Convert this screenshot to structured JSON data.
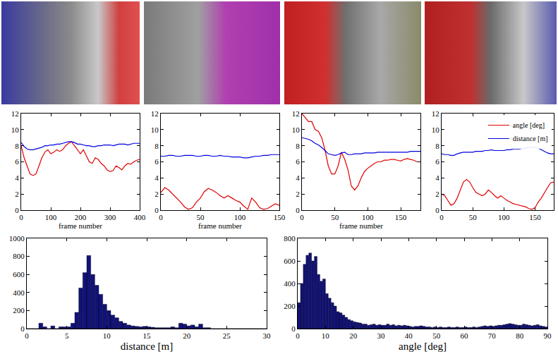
{
  "chart_data": [
    {
      "type": "line",
      "xlabel": "frame number",
      "x": [
        0,
        10,
        20,
        30,
        40,
        50,
        60,
        70,
        80,
        90,
        100,
        110,
        120,
        130,
        140,
        150,
        160,
        170,
        180,
        190,
        200,
        210,
        220,
        230,
        240,
        250,
        260,
        270,
        280,
        290,
        300,
        310,
        320,
        330,
        340,
        350,
        360,
        370,
        380,
        390,
        400
      ],
      "series": [
        {
          "color": "#e00000",
          "values": [
            8,
            6.5,
            5.5,
            4.5,
            4.3,
            4.5,
            5.5,
            6.5,
            7.2,
            7.5,
            7,
            7.2,
            7.5,
            7.3,
            7.5,
            8,
            8.3,
            8.5,
            8,
            7.5,
            7,
            7.5,
            6.8,
            6,
            5.8,
            6.5,
            6.3,
            5.8,
            5.5,
            5,
            4.8,
            4.9,
            5.5,
            5.3,
            5,
            5.5,
            5.8,
            5.7,
            6,
            6.2,
            6.3
          ]
        },
        {
          "color": "#0000e0",
          "values": [
            8.4,
            7.9,
            7.6,
            7.5,
            7.5,
            7.6,
            7.7,
            7.8,
            8.0,
            8.0,
            8.1,
            8.1,
            8.2,
            8.2,
            8.3,
            8.4,
            8.5,
            8.5,
            8.4,
            8.2,
            8.2,
            8.1,
            8.0,
            8.0,
            7.9,
            7.9,
            8.0,
            8.0,
            8.1,
            8.1,
            8.1,
            8.0,
            8.1,
            8.2,
            8.2,
            8.2,
            8.1,
            8.2,
            8.3,
            8.3,
            8.3
          ]
        }
      ],
      "xlim": [
        0,
        400
      ],
      "xticks": [
        0,
        100,
        200,
        300,
        400
      ],
      "ylim": [
        0,
        12
      ],
      "yticks": [
        0,
        2,
        4,
        6,
        8,
        10,
        12
      ],
      "grid": false
    },
    {
      "type": "line",
      "xlabel": "frame number",
      "x": [
        0,
        5,
        10,
        15,
        20,
        25,
        30,
        35,
        40,
        45,
        50,
        55,
        60,
        65,
        70,
        75,
        80,
        85,
        90,
        95,
        100,
        105,
        110,
        115,
        120,
        125,
        130,
        135,
        140,
        145,
        150
      ],
      "series": [
        {
          "color": "#e00000",
          "values": [
            2.2,
            2.8,
            2.5,
            2,
            1.5,
            1,
            0.4,
            0.1,
            0.3,
            1,
            1.5,
            2.3,
            2.7,
            2.5,
            2.2,
            1.8,
            1.5,
            1.8,
            1.5,
            1.2,
            1,
            0.5,
            0.1,
            1.5,
            1,
            0.3,
            0.1,
            0.2,
            0.5,
            0.8,
            0.6
          ]
        },
        {
          "color": "#0000e0",
          "values": [
            6.7,
            6.7,
            6.8,
            6.8,
            6.7,
            6.7,
            6.8,
            6.8,
            6.8,
            6.7,
            6.7,
            6.8,
            6.8,
            6.7,
            6.7,
            6.8,
            6.7,
            6.7,
            6.6,
            6.6,
            6.6,
            6.5,
            6.5,
            6.6,
            6.7,
            6.7,
            6.8,
            6.8,
            6.9,
            6.9,
            6.9
          ]
        }
      ],
      "xlim": [
        0,
        150
      ],
      "xticks": [
        0,
        50,
        100,
        150
      ],
      "ylim": [
        0,
        12
      ],
      "yticks": [
        0,
        2,
        4,
        6,
        8,
        10,
        12
      ],
      "grid": false
    },
    {
      "type": "line",
      "xlabel": "frame number",
      "x": [
        0,
        5,
        10,
        15,
        20,
        25,
        30,
        35,
        40,
        45,
        50,
        55,
        60,
        65,
        70,
        75,
        80,
        85,
        90,
        95,
        100,
        105,
        110,
        115,
        120,
        125,
        130,
        135,
        140,
        145,
        150,
        155,
        160,
        165,
        170,
        175,
        180
      ],
      "series": [
        {
          "color": "#e00000",
          "values": [
            12,
            11.5,
            11,
            11,
            10,
            9.8,
            9,
            7.5,
            5.5,
            4.5,
            4.5,
            5.5,
            7.2,
            6.3,
            5,
            3,
            2.5,
            3,
            4,
            4.8,
            5.2,
            5.5,
            5.8,
            6,
            6,
            6.2,
            6.2,
            6.3,
            6.3,
            6.2,
            6.1,
            6.3,
            6.4,
            6.3,
            6.2,
            6,
            6
          ]
        },
        {
          "color": "#0000e0",
          "values": [
            9,
            8.9,
            8.8,
            8.6,
            8.3,
            8.1,
            7.8,
            7.4,
            7,
            6.9,
            6.8,
            6.9,
            7.1,
            7.2,
            6.9,
            6.9,
            7,
            7,
            7,
            7.1,
            7.1,
            7.1,
            7.1,
            7.2,
            7.2,
            7.2,
            7.2,
            7.2,
            7.2,
            7.2,
            7.2,
            7.2,
            7.2,
            7.3,
            7.3,
            7.3,
            7.3
          ]
        }
      ],
      "xlim": [
        0,
        180
      ],
      "xticks": [
        0,
        50,
        100,
        150
      ],
      "ylim": [
        0,
        12
      ],
      "yticks": [
        0,
        2,
        4,
        6,
        8,
        10,
        12
      ],
      "grid": false
    },
    {
      "type": "line",
      "x": [
        0,
        5,
        10,
        15,
        20,
        25,
        30,
        35,
        40,
        45,
        50,
        55,
        60,
        65,
        70,
        75,
        80,
        85,
        90,
        95,
        100,
        105,
        110,
        115,
        120,
        125,
        130,
        135,
        140,
        145,
        150,
        155,
        160,
        165,
        170,
        175,
        180
      ],
      "series": [
        {
          "name": "angle [deg]",
          "color": "#e00000",
          "values": [
            2,
            1.8,
            1.2,
            0.6,
            0.8,
            1.5,
            2.5,
            3.5,
            3.8,
            3.5,
            2.8,
            2.2,
            2,
            1.8,
            2,
            2.5,
            2.2,
            1.8,
            1.5,
            1.8,
            1.5,
            1.2,
            1,
            0.8,
            0.7,
            0.6,
            0.5,
            0.4,
            0.2,
            0.1,
            0.3,
            1,
            1.5,
            2.2,
            2.8,
            3.4,
            3.5
          ]
        },
        {
          "name": "distance [m]",
          "color": "#0000e0",
          "values": [
            7,
            6.9,
            6.9,
            6.8,
            6.8,
            7,
            7.1,
            7.2,
            7.2,
            7.2,
            7.2,
            7.3,
            7.3,
            7.3,
            7.4,
            7.4,
            7.5,
            7.4,
            7.4,
            7.4,
            7.4,
            7.5,
            7.5,
            7.6,
            7.6,
            7.6,
            7.7,
            7.7,
            7.8,
            7.8,
            7.8,
            7.7,
            7.5,
            7.3,
            7.1,
            7.0,
            7.0
          ]
        }
      ],
      "xlim": [
        0,
        180
      ],
      "xticks": [
        0,
        50,
        100,
        150
      ],
      "ylim": [
        0,
        12
      ],
      "yticks": [
        0,
        2,
        4,
        6,
        8,
        10,
        12
      ],
      "grid": false,
      "legend": "upper right"
    },
    {
      "type": "histogram",
      "xlabel": "distance [m]",
      "color": "#12127a",
      "bins": [
        0,
        0.5,
        1,
        1.5,
        2,
        2.5,
        3,
        3.5,
        4,
        4.5,
        5,
        5.5,
        6,
        6.5,
        7,
        7.5,
        8,
        8.5,
        9,
        9.5,
        10,
        10.5,
        11,
        11.5,
        12,
        12.5,
        13,
        13.5,
        14,
        14.5,
        15,
        15.5,
        16,
        16.5,
        17,
        17.5,
        18,
        18.5,
        19,
        19.5,
        20,
        20.5,
        21,
        21.5,
        22,
        22.5,
        23,
        23.5,
        24,
        24.5,
        25,
        25.5,
        26,
        26.5,
        27,
        27.5,
        28,
        28.5,
        29,
        29.5,
        30
      ],
      "counts": [
        0,
        0,
        0,
        60,
        20,
        0,
        30,
        0,
        20,
        20,
        20,
        60,
        180,
        450,
        620,
        810,
        600,
        480,
        380,
        270,
        200,
        150,
        120,
        80,
        60,
        40,
        30,
        25,
        20,
        25,
        20,
        15,
        10,
        10,
        10,
        10,
        20,
        10,
        60,
        50,
        30,
        40,
        20,
        50,
        10,
        10,
        0,
        0,
        0,
        0,
        0,
        0,
        0,
        0,
        0,
        0,
        0,
        0,
        0,
        0
      ],
      "xlim": [
        0,
        30
      ],
      "xticks": [
        0,
        5,
        10,
        15,
        20,
        25,
        30
      ],
      "ylim": [
        0,
        1000
      ],
      "yticks": [
        0,
        200,
        400,
        600,
        800,
        1000
      ],
      "grid": false
    },
    {
      "type": "histogram",
      "xlabel": "angle [deg]",
      "color": "#12127a",
      "bins": [
        0,
        1,
        2,
        3,
        4,
        5,
        6,
        7,
        8,
        9,
        10,
        11,
        12,
        13,
        14,
        15,
        16,
        17,
        18,
        19,
        20,
        21,
        22,
        23,
        24,
        25,
        26,
        27,
        28,
        29,
        30,
        31,
        32,
        33,
        34,
        35,
        36,
        37,
        38,
        39,
        40,
        41,
        42,
        43,
        44,
        45,
        46,
        47,
        48,
        49,
        50,
        51,
        52,
        53,
        54,
        55,
        56,
        57,
        58,
        59,
        60,
        61,
        62,
        63,
        64,
        65,
        66,
        67,
        68,
        69,
        70,
        71,
        72,
        73,
        74,
        75,
        76,
        77,
        78,
        79,
        80,
        81,
        82,
        83,
        84,
        85,
        86,
        87,
        88,
        89,
        90
      ],
      "counts": [
        230,
        400,
        570,
        650,
        670,
        600,
        640,
        480,
        420,
        440,
        310,
        270,
        230,
        200,
        150,
        140,
        120,
        100,
        80,
        70,
        60,
        55,
        50,
        40,
        40,
        30,
        35,
        40,
        30,
        35,
        30,
        30,
        40,
        30,
        35,
        25,
        30,
        25,
        30,
        25,
        20,
        15,
        20,
        20,
        25,
        20,
        15,
        15,
        10,
        15,
        10,
        15,
        10,
        10,
        15,
        10,
        10,
        15,
        10,
        10,
        15,
        10,
        10,
        15,
        10,
        15,
        20,
        25,
        20,
        25,
        20,
        25,
        30,
        30,
        35,
        40,
        45,
        40,
        35,
        30,
        30,
        40,
        35,
        30,
        25,
        30,
        35,
        25,
        20,
        15
      ],
      "xlim": [
        0,
        90
      ],
      "xticks": [
        0,
        10,
        20,
        30,
        40,
        50,
        60,
        70,
        80,
        90
      ],
      "ylim": [
        0,
        800
      ],
      "yticks": [
        0,
        200,
        400,
        600,
        800
      ],
      "grid": false
    }
  ]
}
